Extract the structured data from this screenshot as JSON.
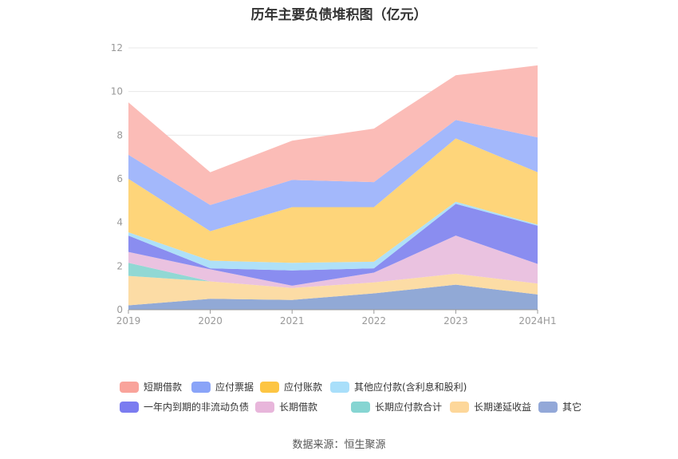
{
  "title": "历年主要负债堆积图（亿元）",
  "source": "数据来源：恒生聚源",
  "chart_data": {
    "type": "area",
    "stacked": true,
    "x": [
      "2019",
      "2020",
      "2021",
      "2022",
      "2023",
      "2024H1"
    ],
    "ylim": [
      0,
      12
    ],
    "yticks": [
      0,
      2,
      4,
      6,
      8,
      10,
      12
    ],
    "grid": true,
    "legend_position": "bottom",
    "series": [
      {
        "name": "其它",
        "color": "#91a9d6",
        "values": [
          0.2,
          0.5,
          0.45,
          0.75,
          1.15,
          0.7
        ]
      },
      {
        "name": "长期递延收益",
        "color": "#fcdca5",
        "values": [
          1.35,
          0.8,
          0.55,
          0.5,
          0.5,
          0.5
        ]
      },
      {
        "name": "长期应付款合计",
        "color": "#91d8d4",
        "values": [
          0.6,
          0.0,
          0.0,
          0.0,
          0.0,
          0.0
        ]
      },
      {
        "name": "长期借款",
        "color": "#eac2e0",
        "values": [
          0.5,
          0.55,
          0.1,
          0.45,
          1.75,
          0.9
        ]
      },
      {
        "name": "一年内到期的非流动负债",
        "color": "#8a8df0",
        "values": [
          0.75,
          0.05,
          0.7,
          0.2,
          1.45,
          1.75
        ]
      },
      {
        "name": "其他应付款(含利息和股利)",
        "color": "#aee0f8",
        "values": [
          0.15,
          0.35,
          0.35,
          0.3,
          0.1,
          0.05
        ]
      },
      {
        "name": "应付账款",
        "color": "#fed57a",
        "values": [
          2.45,
          1.35,
          2.55,
          2.5,
          2.9,
          2.4
        ]
      },
      {
        "name": "应付票据",
        "color": "#a3b8fb",
        "values": [
          1.1,
          1.2,
          1.25,
          1.15,
          0.85,
          1.6
        ]
      },
      {
        "name": "短期借款",
        "color": "#fbbcb7",
        "values": [
          2.4,
          1.5,
          1.8,
          2.45,
          2.05,
          3.3
        ]
      }
    ]
  },
  "legend": {
    "row1": [
      {
        "label": "短期借款",
        "color": "#f9a39b"
      },
      {
        "label": "应付票据",
        "color": "#8aa4f8"
      },
      {
        "label": "应付账款",
        "color": "#fdc543"
      },
      {
        "label": "其他应付款(含利息和股利)",
        "color": "#a9dffa"
      }
    ],
    "row2": [
      {
        "label": "一年内到期的非流动负债",
        "color": "#7b7cf0"
      },
      {
        "label": "长期借款",
        "color": "#e8b6db"
      },
      {
        "label": "长期应付款合计",
        "color": "#86d5d2"
      },
      {
        "label": "长期递延收益",
        "color": "#fdd79a"
      },
      {
        "label": "其它",
        "color": "#93a8d8"
      }
    ]
  }
}
